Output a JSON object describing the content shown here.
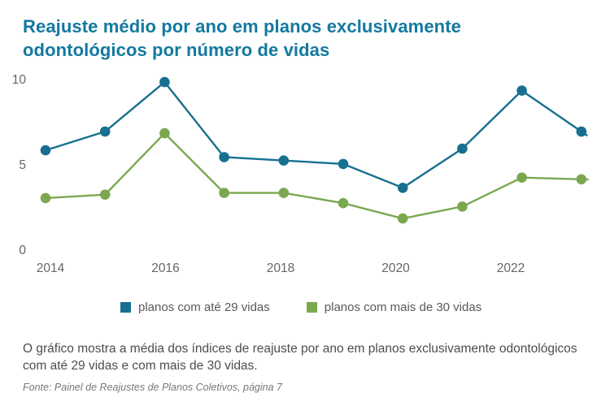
{
  "title": "Reajuste médio por ano em planos exclusivamente odontológicos por número de vidas",
  "description": "O gráfico mostra a média dos índices de reajuste por ano em planos exclusivamente odontológicos com até 29 vidas e com mais de 30 vidas.",
  "source": "Fonte: Painel de Reajustes de Planos Coletivos, página 7",
  "colors": {
    "title": "#13799f",
    "series1": "#17708f",
    "series2": "#7ba84f",
    "axis_text": "#666666",
    "body_text": "#4d4d4d"
  },
  "chart_data": {
    "type": "line",
    "title": "Reajuste médio por ano em planos exclusivamente odontológicos por número de vidas",
    "x": [
      2014,
      2015,
      2016,
      2017,
      2018,
      2019,
      2020,
      2021,
      2022,
      2023
    ],
    "series": [
      {
        "name": "planos com até 29 vidas",
        "color": "#17708f",
        "values": [
          5.9,
          7.0,
          9.9,
          5.5,
          5.3,
          5.1,
          3.7,
          6.0,
          9.4,
          7.0
        ]
      },
      {
        "name": "planos com mais de 30 vidas",
        "color": "#7ba84f",
        "values": [
          3.1,
          3.3,
          6.9,
          3.4,
          3.4,
          2.8,
          1.9,
          2.6,
          4.3,
          4.2
        ]
      }
    ],
    "y_ticks": [
      0,
      5,
      10
    ],
    "x_tick_labels": [
      "2014",
      "2016",
      "2018",
      "2020",
      "2022"
    ],
    "ylim": [
      0,
      10.5
    ],
    "xlabel": "",
    "ylabel": "",
    "grid": false,
    "legend_position": "bottom"
  },
  "legend": {
    "items": [
      {
        "label": "planos com até 29 vidas",
        "color": "#17708f"
      },
      {
        "label": "planos com mais de 30 vidas",
        "color": "#7ba84f"
      }
    ]
  }
}
